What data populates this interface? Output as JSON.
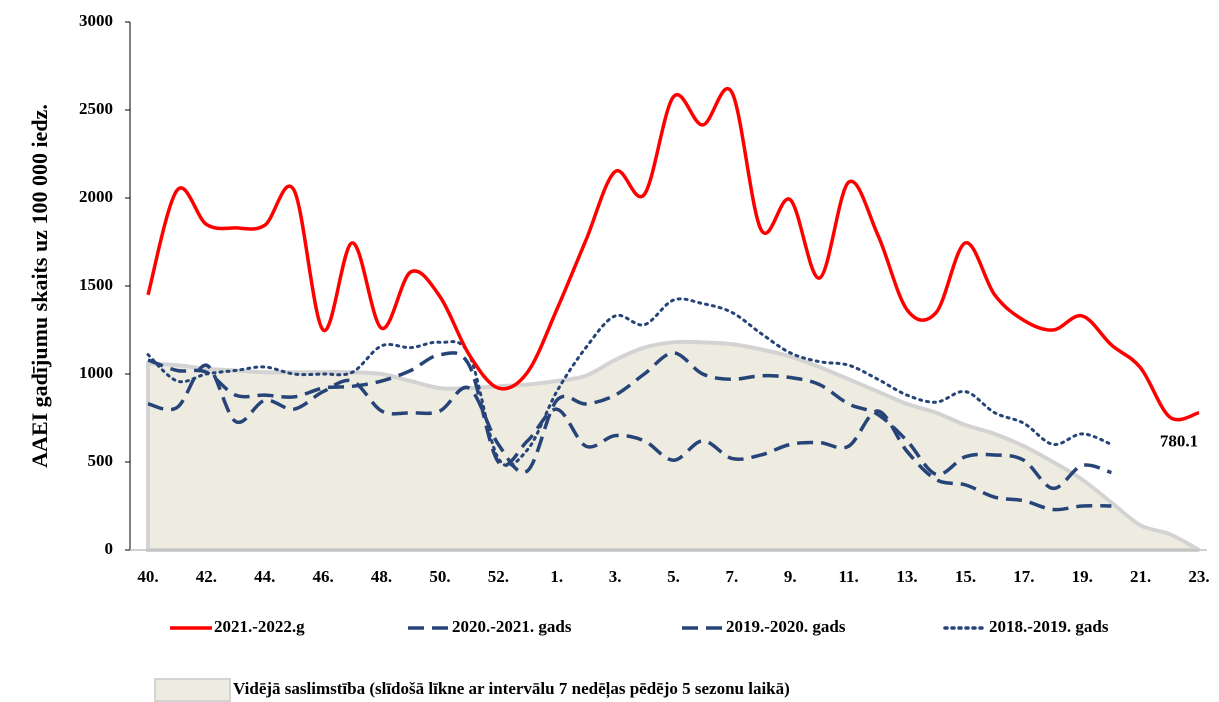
{
  "chart_data": {
    "type": "line",
    "y_label": "AAEI gadījumu skaits uz 100 000 iedz.",
    "categories": [
      "40.",
      null,
      "42.",
      null,
      "44.",
      null,
      "46.",
      null,
      "48.",
      null,
      "50.",
      null,
      "52.",
      null,
      "1.",
      null,
      "3.",
      null,
      "5.",
      null,
      "7.",
      null,
      "9.",
      null,
      "11.",
      null,
      "13.",
      null,
      "15.",
      null,
      "17.",
      null,
      "19.",
      null,
      "21.",
      null,
      "23."
    ],
    "ylim": [
      0,
      3000
    ],
    "yticks": [
      0,
      500,
      1000,
      1500,
      2000,
      2500,
      3000
    ],
    "grid": false,
    "series": [
      {
        "name": "2021.-2022.g",
        "color": "#ff0000",
        "style": "solid",
        "values": [
          1450,
          2045,
          1850,
          1830,
          1845,
          2045,
          1250,
          1745,
          1260,
          1580,
          1440,
          1110,
          920,
          1010,
          1365,
          1760,
          2150,
          2020,
          2575,
          2415,
          2600,
          1820,
          1990,
          1545,
          2090,
          1790,
          1365,
          1350,
          1745,
          1450,
          1305,
          1250,
          1330,
          1165,
          1035,
          755,
          780.1
        ]
      },
      {
        "name": "2020.-2021. gads",
        "color": "#264478",
        "style": "dashed",
        "values": [
          830,
          810,
          1050,
          730,
          850,
          800,
          900,
          960,
          790,
          780,
          790,
          920,
          600,
          450,
          850,
          830,
          880,
          1000,
          1120,
          1000,
          970,
          990,
          980,
          940,
          830,
          770,
          620,
          430,
          530,
          540,
          510,
          350,
          480,
          440,
          null,
          null,
          null
        ]
      },
      {
        "name": "2019.-2020. gads",
        "color": "#264478",
        "style": "dashed",
        "values": [
          1080,
          1020,
          1010,
          880,
          880,
          870,
          920,
          930,
          960,
          1020,
          1110,
          1050,
          500,
          620,
          800,
          590,
          650,
          620,
          510,
          620,
          520,
          540,
          600,
          610,
          590,
          790,
          560,
          400,
          370,
          300,
          280,
          230,
          250,
          250,
          null,
          null,
          null
        ]
      },
      {
        "name": "2018.-2019. gads",
        "color": "#264478",
        "style": "dotted",
        "values": [
          1110,
          960,
          1000,
          1020,
          1040,
          1000,
          1000,
          1010,
          1160,
          1150,
          1180,
          1110,
          520,
          570,
          900,
          1150,
          1330,
          1280,
          1420,
          1400,
          1350,
          1230,
          1120,
          1070,
          1050,
          970,
          880,
          840,
          900,
          780,
          720,
          600,
          660,
          600,
          null,
          null,
          null
        ]
      },
      {
        "name": "Vidējā saslimstība (slīdošā līkne ar intervālu 7 nedēļas pēdējo 5 sezonu laikā)",
        "color": "#eeebe0",
        "style": "area",
        "values": [
          1060,
          1050,
          1030,
          1020,
          1010,
          1010,
          1010,
          1010,
          1000,
          960,
          920,
          920,
          930,
          940,
          960,
          990,
          1080,
          1150,
          1180,
          1180,
          1170,
          1140,
          1100,
          1040,
          970,
          900,
          830,
          780,
          710,
          660,
          590,
          500,
          400,
          270,
          140,
          90,
          0
        ]
      }
    ]
  }
}
